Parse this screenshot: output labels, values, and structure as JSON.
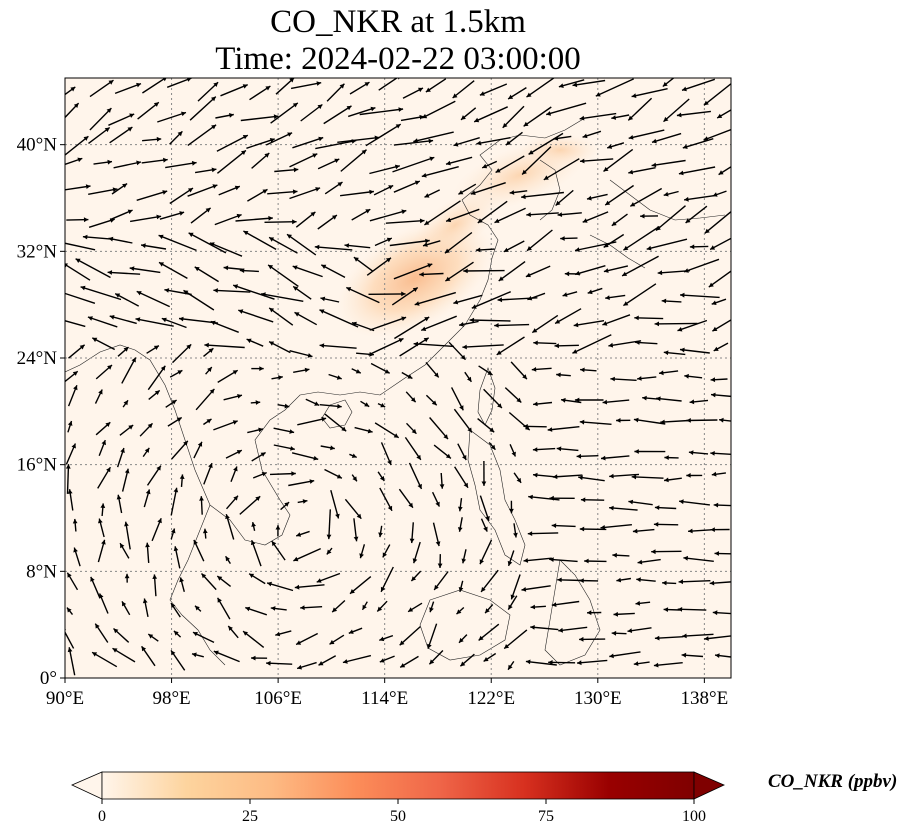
{
  "title": {
    "line1": "CO_NKR at 1.5km",
    "line2": "Time: 2024-02-22 03:00:00"
  },
  "map": {
    "variable": "CO_NKR",
    "level": "1.5km",
    "extent": {
      "lon_min": 90,
      "lon_max": 140,
      "lat_min": 0,
      "lat_max": 45
    },
    "x_ticks": [
      {
        "value": 90,
        "label": "90°E"
      },
      {
        "value": 98,
        "label": "98°E"
      },
      {
        "value": 106,
        "label": "106°E"
      },
      {
        "value": 114,
        "label": "114°E"
      },
      {
        "value": 122,
        "label": "122°E"
      },
      {
        "value": 130,
        "label": "130°E"
      },
      {
        "value": 138,
        "label": "138°E"
      }
    ],
    "y_ticks": [
      {
        "value": 0,
        "label": "0°"
      },
      {
        "value": 8,
        "label": "8°N"
      },
      {
        "value": 16,
        "label": "16°N"
      },
      {
        "value": 24,
        "label": "24°N"
      },
      {
        "value": 32,
        "label": "32°N"
      },
      {
        "value": 40,
        "label": "40°N"
      }
    ],
    "gridlines": true,
    "background_color": "#fff5eb",
    "overlay": "wind vectors"
  },
  "colorbar": {
    "label": "CO_NKR (ppbv)",
    "min": 0,
    "max": 100,
    "extend": "both",
    "colormap": "OrRd",
    "ticks": [
      {
        "value": 0,
        "label": "0"
      },
      {
        "value": 25,
        "label": "25"
      },
      {
        "value": 50,
        "label": "50"
      },
      {
        "value": 75,
        "label": "75"
      },
      {
        "value": 100,
        "label": "100"
      }
    ],
    "colors": [
      "#fff5eb",
      "#fdd49e",
      "#fdbb84",
      "#fc8d59",
      "#ef6548",
      "#d7301f",
      "#990000",
      "#7f0000"
    ]
  }
}
